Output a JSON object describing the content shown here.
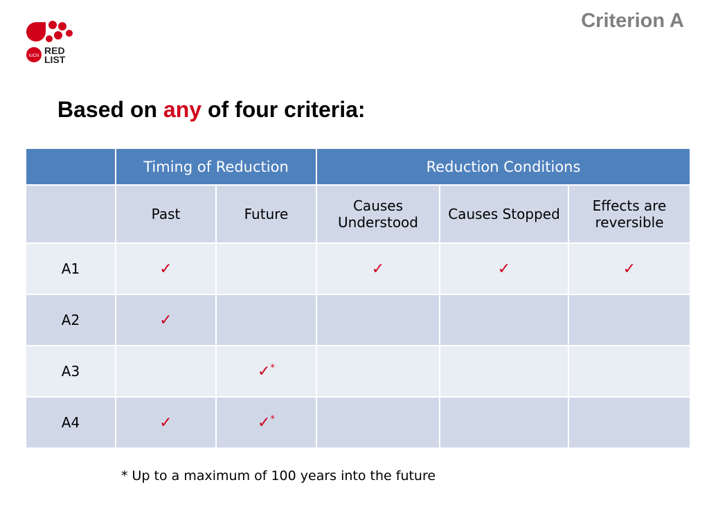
{
  "header": {
    "title": "Criterion A"
  },
  "logo": {
    "text_line1": "RED",
    "text_line2": "LIST",
    "badge": "IUCN"
  },
  "heading": {
    "before": "Based on ",
    "accent": "any",
    "after": " of four criteria:"
  },
  "table": {
    "group_headers": [
      "",
      "Timing of Reduction",
      "Reduction Conditions"
    ],
    "sub_headers": [
      "",
      "Past",
      "Future",
      "Causes Understood",
      "Causes Stopped",
      "Effects are reversible"
    ],
    "check_mark": "✓",
    "star": "*",
    "rows": [
      {
        "label": "A1",
        "past": "✓",
        "future": "",
        "future_star": "",
        "causes_understood": "✓",
        "causes_stopped": "✓",
        "effects_reversible": "✓"
      },
      {
        "label": "A2",
        "past": "✓",
        "future": "",
        "future_star": "",
        "causes_understood": "",
        "causes_stopped": "",
        "effects_reversible": ""
      },
      {
        "label": "A3",
        "past": "",
        "future": "✓",
        "future_star": "*",
        "causes_understood": "",
        "causes_stopped": "",
        "effects_reversible": ""
      },
      {
        "label": "A4",
        "past": "✓",
        "future": "✓",
        "future_star": "*",
        "causes_understood": "",
        "causes_stopped": "",
        "effects_reversible": ""
      }
    ]
  },
  "footnote": "* Up to a maximum of 100 years into the future",
  "colors": {
    "accent_red": "#d0021b",
    "header_blue": "#4f81bd",
    "row_light": "#e9edf4",
    "row_dark": "#d0d8e8",
    "title_gray": "#7f7f7f"
  }
}
